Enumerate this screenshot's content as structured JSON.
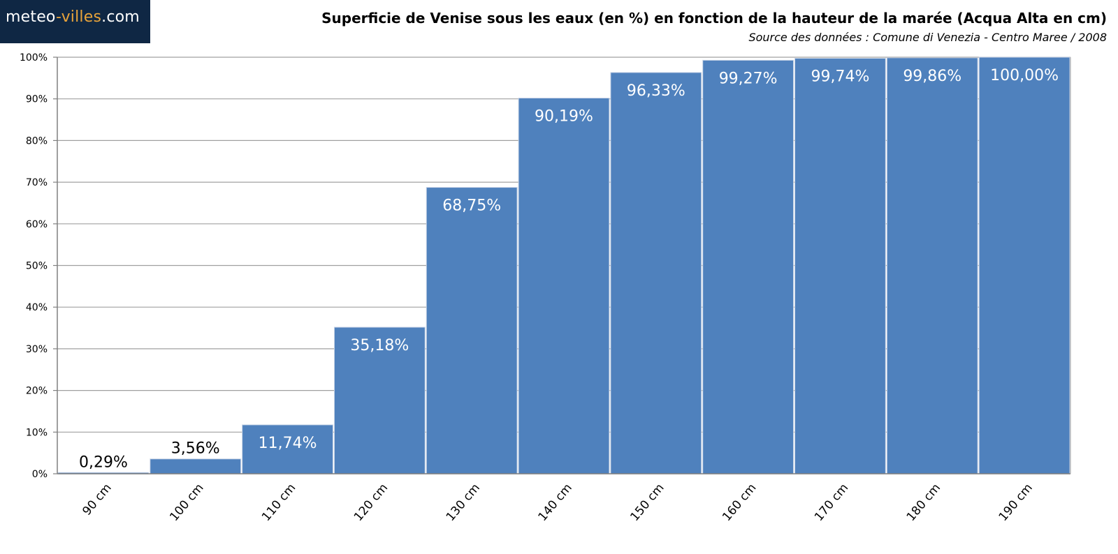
{
  "brand": {
    "part1": "meteo",
    "separator": "-",
    "part2": "villes",
    "part3": ".com"
  },
  "chart_data": {
    "type": "bar",
    "title": "Superficie de Venise sous les eaux (en %) en fonction de la hauteur de la marée (Acqua Alta en cm)",
    "subtitle": "Source des données : Comune di Venezia - Centro Maree / 2008",
    "xlabel": "",
    "ylabel": "",
    "categories": [
      "90 cm",
      "100 cm",
      "110 cm",
      "120 cm",
      "130 cm",
      "140 cm",
      "150 cm",
      "160 cm",
      "170 cm",
      "180 cm",
      "190 cm"
    ],
    "values": [
      0.29,
      3.56,
      11.74,
      35.18,
      68.75,
      90.19,
      96.33,
      99.27,
      99.74,
      99.86,
      100.0
    ],
    "value_labels": [
      "0,29%",
      "3,56%",
      "11,74%",
      "35,18%",
      "68,75%",
      "90,19%",
      "96,33%",
      "99,27%",
      "99,74%",
      "99,86%",
      "100,00%"
    ],
    "ylim": [
      0,
      100
    ],
    "y_ticks": [
      0,
      10,
      20,
      30,
      40,
      50,
      60,
      70,
      80,
      90,
      100
    ],
    "y_tick_labels": [
      "0%",
      "10%",
      "20%",
      "30%",
      "40%",
      "50%",
      "60%",
      "70%",
      "80%",
      "90%",
      "100%"
    ],
    "grid": true,
    "legend": "none",
    "bar_color": "#4f81bd"
  }
}
